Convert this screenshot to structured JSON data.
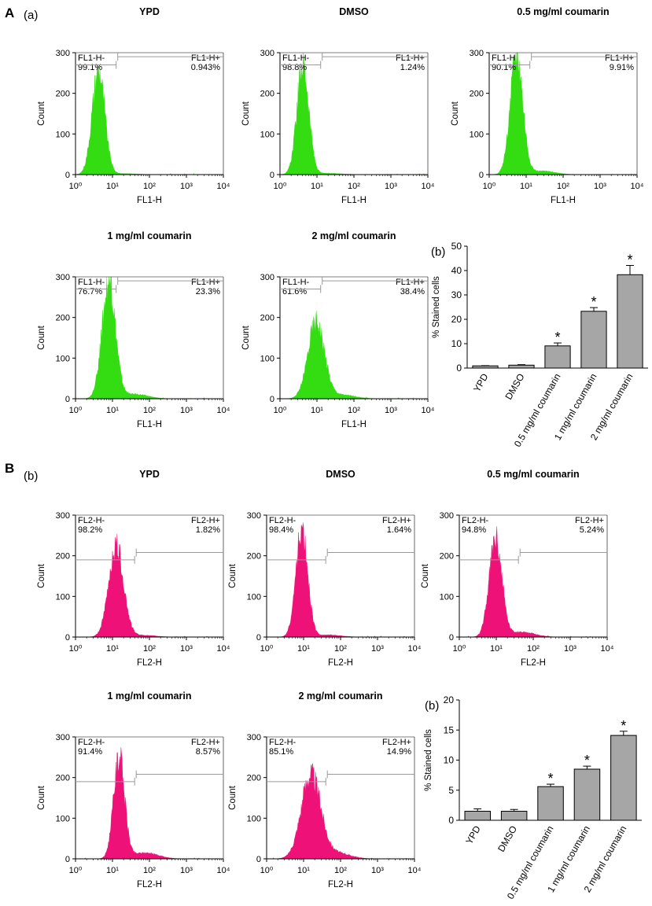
{
  "figure": {
    "section_a_label": "A",
    "section_b_label": "B",
    "sub_a": "(a)",
    "sub_b": "(b)"
  },
  "colors": {
    "fl1_fill": "#33dd11",
    "fl2_fill": "#ee1177",
    "bar_fill": "#a6a6a6",
    "gate_line": "#9a9a9a"
  },
  "section_a": {
    "histograms": [
      {
        "title": "YPD",
        "neg_label": "FL1-H-",
        "neg_pct": "99.1%",
        "pos_label": "FL1-H+",
        "pos_pct": "0.943%",
        "xlabel": "FL1-H",
        "ylabel": "Count",
        "peak": 265,
        "center": 0.62,
        "width": 0.17,
        "tail": 0.01,
        "gate_split": 1.1,
        "gate_left_y": 270,
        "gate_right_y": 290
      },
      {
        "title": "DMSO",
        "neg_label": "FL1-H-",
        "neg_pct": "98.8%",
        "pos_label": "FL1-H+",
        "pos_pct": "1.24%",
        "xlabel": "FL1-H",
        "ylabel": "Count",
        "peak": 280,
        "center": 0.62,
        "width": 0.16,
        "tail": 0.012,
        "gate_split": 1.1,
        "gate_left_y": 270,
        "gate_right_y": 290
      },
      {
        "title": "0.5 mg/ml coumarin",
        "neg_label": "FL1-H",
        "neg_pct": "90.1%",
        "pos_label": "FL1-H+",
        "pos_pct": "9.91%",
        "xlabel": "FL1-H",
        "ylabel": "Count",
        "peak": 300,
        "center": 0.74,
        "width": 0.17,
        "tail": 0.03,
        "gate_split": 1.1,
        "gate_left_y": 270,
        "gate_right_y": 290
      },
      {
        "title": "1 mg/ml coumarin",
        "neg_label": "FL1-H-",
        "neg_pct": "76.7%",
        "pos_label": "FL1-H+",
        "pos_pct": "23.3%",
        "xlabel": "FL1-H",
        "ylabel": "Count",
        "peak": 295,
        "center": 0.9,
        "width": 0.18,
        "tail": 0.04,
        "gate_split": 1.1,
        "gate_left_y": 270,
        "gate_right_y": 290
      },
      {
        "title": "2 mg/ml coumarin",
        "neg_label": "FL1-H-",
        "neg_pct": "61.6%",
        "pos_label": "FL1-H+",
        "pos_pct": "38.4%",
        "xlabel": "FL1-H",
        "ylabel": "Count",
        "peak": 195,
        "center": 0.98,
        "width": 0.22,
        "tail": 0.05,
        "gate_split": 1.1,
        "gate_left_y": 270,
        "gate_right_y": 290
      }
    ],
    "x_ticks": [
      "10⁰",
      "10¹",
      "10²",
      "10³",
      "10⁴"
    ],
    "y_ticks": [
      "0",
      "100",
      "200",
      "300"
    ]
  },
  "section_b": {
    "histograms": [
      {
        "title": "YPD",
        "neg_label": "FL2-H-",
        "neg_pct": "98.2%",
        "pos_label": "FL2-H+",
        "pos_pct": "1.82%",
        "xlabel": "FL2-H",
        "ylabel": "Count",
        "peak": 230,
        "center": 1.1,
        "width": 0.2,
        "tail": 0.02,
        "gate_split": 1.6,
        "gate_left_y": 190,
        "gate_right_y": 208
      },
      {
        "title": "DMSO",
        "neg_label": "FL2-H-",
        "neg_pct": "98.4%",
        "pos_label": "FL2-H+",
        "pos_pct": "1.64%",
        "xlabel": "FL2-H",
        "ylabel": "Count",
        "peak": 270,
        "center": 0.95,
        "width": 0.16,
        "tail": 0.02,
        "gate_split": 1.6,
        "gate_left_y": 190,
        "gate_right_y": 208
      },
      {
        "title": "0.5 mg/ml coumarin",
        "neg_label": "FL2-H-",
        "neg_pct": "94.8%",
        "pos_label": "FL2-H+",
        "pos_pct": "5.24%",
        "xlabel": "FL2-H",
        "ylabel": "Count",
        "peak": 255,
        "center": 0.98,
        "width": 0.17,
        "tail": 0.05,
        "gate_split": 1.6,
        "gate_left_y": 190,
        "gate_right_y": 208
      },
      {
        "title": "1 mg/ml coumarin",
        "neg_label": "FL2-H-",
        "neg_pct": "91.4%",
        "pos_label": "FL2-H+",
        "pos_pct": "8.57%",
        "xlabel": "FL2-H",
        "ylabel": "Count",
        "peak": 260,
        "center": 1.18,
        "width": 0.15,
        "tail": 0.06,
        "gate_split": 1.6,
        "gate_left_y": 190,
        "gate_right_y": 208
      },
      {
        "title": "2 mg/ml coumarin",
        "neg_label": "FL2-H-",
        "neg_pct": "85.1%",
        "pos_label": "FL2-H+",
        "pos_pct": "14.9%",
        "xlabel": "FL2-H",
        "ylabel": "Count",
        "peak": 215,
        "center": 1.2,
        "width": 0.26,
        "tail": 0.07,
        "gate_split": 1.6,
        "gate_left_y": 190,
        "gate_right_y": 208
      }
    ],
    "x_ticks": [
      "10⁰",
      "10¹",
      "10²",
      "10³",
      "10⁴"
    ],
    "y_ticks": [
      "0",
      "100",
      "200",
      "300"
    ]
  },
  "chart_data": [
    {
      "type": "bar",
      "title": "(b)",
      "ylabel": "% Stained cells",
      "categories": [
        "YPD",
        "DMSO",
        "0.5 mg/ml coumarin",
        "1 mg/ml coumarin",
        "2 mg/ml coumarin"
      ],
      "values": [
        0.9,
        1.2,
        9.1,
        23.3,
        38.3
      ],
      "errors": [
        0.1,
        0.2,
        1.2,
        1.5,
        3.8
      ],
      "significant": [
        "",
        "",
        "*",
        "*",
        "*"
      ],
      "ylim": [
        0,
        50
      ],
      "yticks": [
        0,
        10,
        20,
        30,
        40,
        50
      ],
      "ytick_labels": [
        "0",
        "10",
        "20",
        "30",
        "40",
        "50"
      ]
    },
    {
      "type": "bar",
      "title": "(b)",
      "ylabel": "% Stained cells",
      "categories": [
        "YPD",
        "DMSO",
        "0.5 mg/ml coumarin",
        "1 mg/ml coumarin",
        "2 mg/ml coumarin"
      ],
      "values": [
        1.5,
        1.5,
        5.6,
        8.5,
        14.1
      ],
      "errors": [
        0.4,
        0.3,
        0.4,
        0.5,
        0.7
      ],
      "significant": [
        "",
        "",
        "*",
        "*",
        "*"
      ],
      "ylim": [
        0,
        20
      ],
      "yticks": [
        0,
        5,
        10,
        15,
        20
      ],
      "ytick_labels": [
        "0",
        "5",
        "10",
        "15",
        "20"
      ]
    }
  ]
}
